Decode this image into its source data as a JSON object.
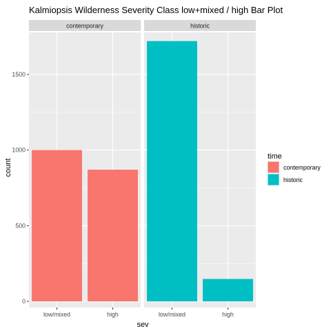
{
  "chart_data": {
    "type": "bar",
    "title": "Kalmiopsis Wilderness Severity Class low+mixed / high Bar Plot",
    "xlabel": "sev",
    "ylabel": "count",
    "ylim": [
      0,
      1750
    ],
    "yticks": [
      0,
      500,
      1000,
      1500
    ],
    "categories": [
      "low/mixed",
      "high"
    ],
    "facets": [
      {
        "label": "contemporary",
        "series": "contemporary",
        "values": [
          1000,
          870
        ]
      },
      {
        "label": "historic",
        "series": "historic",
        "values": [
          1720,
          148
        ]
      }
    ],
    "legend": {
      "title": "time",
      "position": "right",
      "entries": [
        {
          "name": "contemporary",
          "color": "#F8766D"
        },
        {
          "name": "historic",
          "color": "#00BFC4"
        }
      ]
    },
    "panel_background": "#EBEBEB",
    "strip_background": "#D9D9D9",
    "grid": true
  }
}
